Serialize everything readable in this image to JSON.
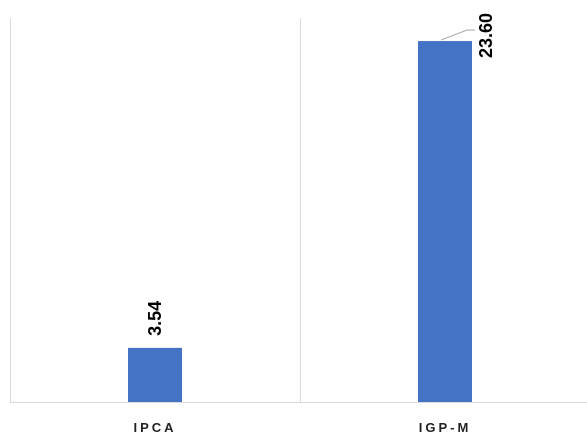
{
  "chart_data": {
    "type": "bar",
    "categories": [
      "IPCA",
      "IGP-M"
    ],
    "values": [
      3.54,
      23.6
    ],
    "data_labels": [
      "3.54",
      "23.60"
    ],
    "ylim": [
      0,
      25.5
    ],
    "grid": "vertical separators between categories",
    "legend": "none",
    "colors": {
      "bar": "#4472C4",
      "gridline": "#D9D9D9",
      "leader_line": "#A6A6A6",
      "label": "#000000"
    }
  }
}
